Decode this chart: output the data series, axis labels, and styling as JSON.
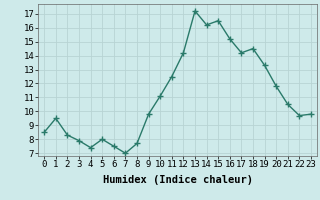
{
  "x": [
    0,
    1,
    2,
    3,
    4,
    5,
    6,
    7,
    8,
    9,
    10,
    11,
    12,
    13,
    14,
    15,
    16,
    17,
    18,
    19,
    20,
    21,
    22,
    23
  ],
  "y": [
    8.5,
    9.5,
    8.3,
    7.9,
    7.4,
    8.0,
    7.5,
    7.0,
    7.7,
    9.8,
    11.1,
    12.5,
    14.2,
    17.2,
    16.2,
    16.5,
    15.2,
    14.2,
    14.5,
    13.3,
    11.8,
    10.5,
    9.7,
    9.8
  ],
  "xlabel": "Humidex (Indice chaleur)",
  "ylim": [
    6.8,
    17.7
  ],
  "xlim": [
    -0.5,
    23.5
  ],
  "yticks": [
    7,
    8,
    9,
    10,
    11,
    12,
    13,
    14,
    15,
    16,
    17
  ],
  "xticks": [
    0,
    1,
    2,
    3,
    4,
    5,
    6,
    7,
    8,
    9,
    10,
    11,
    12,
    13,
    14,
    15,
    16,
    17,
    18,
    19,
    20,
    21,
    22,
    23
  ],
  "line_color": "#2a7a6a",
  "marker": "+",
  "marker_size": 4,
  "marker_lw": 1.0,
  "bg_color": "#ceeaea",
  "grid_color": "#b8d4d4",
  "xlabel_fontsize": 7.5,
  "tick_fontsize": 6.5,
  "linewidth": 1.0
}
